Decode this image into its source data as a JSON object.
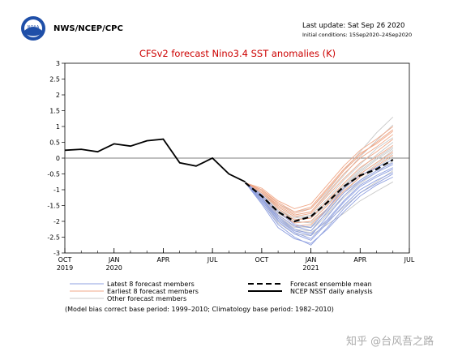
{
  "header": {
    "org": "NWS/NCEP/CPC",
    "last_update": "Last update: Sat Sep 26 2020",
    "initial_conditions": "Initial conditions: 15Sep2020–24Sep2020",
    "logo_text": "NOAA"
  },
  "watermark": "知乎 @台风吾之路",
  "footnote": "(Model bias correct base period: 1999–2010; Climatology base period: 1982–2010)",
  "colors": {
    "latest": "#8fa0e0",
    "earliest": "#f0a888",
    "other": "#c8c8c8",
    "mean": "#000000",
    "analysis": "#000000",
    "title": "#cc0000"
  },
  "legend": [
    {
      "label": "Latest 8 forecast members",
      "key": "latest"
    },
    {
      "label": "Forecast ensemble mean",
      "key": "mean"
    },
    {
      "label": "Earliest 8 forecast members",
      "key": "earliest"
    },
    {
      "label": "NCEP NSST daily analysis",
      "key": "analysis"
    },
    {
      "label": "Other forecast members",
      "key": "other"
    }
  ],
  "chart_data": {
    "type": "line",
    "title": "CFSv2 forecast Nino3.4 SST anomalies (K)",
    "x_unit": "month",
    "xlim": [
      "2019-10",
      "2021-07"
    ],
    "ylim": [
      -3,
      3
    ],
    "y_ticks": [
      -3,
      -2.5,
      -2,
      -1.5,
      -1,
      -0.5,
      0,
      0.5,
      1,
      1.5,
      2,
      2.5,
      3
    ],
    "x_ticks": [
      {
        "line1": "OCT",
        "line2": "2019",
        "x": "2019-10"
      },
      {
        "line1": "JAN",
        "line2": "2020",
        "x": "2020-01"
      },
      {
        "line1": "APR",
        "line2": "",
        "x": "2020-04"
      },
      {
        "line1": "JUL",
        "line2": "",
        "x": "2020-07"
      },
      {
        "line1": "OCT",
        "line2": "",
        "x": "2020-10"
      },
      {
        "line1": "JAN",
        "line2": "2021",
        "x": "2021-01"
      },
      {
        "line1": "APR",
        "line2": "",
        "x": "2021-04"
      },
      {
        "line1": "JUL",
        "line2": "",
        "x": "2021-07"
      }
    ],
    "analysis": {
      "name": "NCEP NSST daily analysis",
      "points": [
        [
          "2019-10",
          0.25
        ],
        [
          "2019-11",
          0.28
        ],
        [
          "2019-12",
          0.2
        ],
        [
          "2020-01",
          0.45
        ],
        [
          "2020-02",
          0.38
        ],
        [
          "2020-03",
          0.55
        ],
        [
          "2020-04",
          0.6
        ],
        [
          "2020-05",
          -0.15
        ],
        [
          "2020-06",
          -0.25
        ],
        [
          "2020-07",
          0.0
        ],
        [
          "2020-08",
          -0.5
        ],
        [
          "2020-09",
          -0.75
        ]
      ]
    },
    "ensemble_mean": {
      "name": "Forecast ensemble mean",
      "points": [
        [
          "2020-09",
          -0.78
        ],
        [
          "2020-10",
          -1.2
        ],
        [
          "2020-11",
          -1.7
        ],
        [
          "2020-12",
          -2.0
        ],
        [
          "2021-01",
          -1.85
        ],
        [
          "2021-02",
          -1.4
        ],
        [
          "2021-03",
          -0.9
        ],
        [
          "2021-04",
          -0.55
        ],
        [
          "2021-05",
          -0.35
        ],
        [
          "2021-06",
          -0.05
        ]
      ]
    },
    "members": {
      "x": [
        "2020-09",
        "2020-10",
        "2020-11",
        "2020-12",
        "2021-01",
        "2021-02",
        "2021-03",
        "2021-04",
        "2021-05",
        "2021-06"
      ],
      "latest": [
        [
          -0.78,
          -1.3,
          -1.95,
          -2.35,
          -2.55,
          -2.0,
          -1.4,
          -0.9,
          -0.6,
          -0.35
        ],
        [
          -0.78,
          -1.25,
          -1.9,
          -2.3,
          -2.45,
          -1.85,
          -1.2,
          -0.75,
          -0.45,
          -0.2
        ],
        [
          -0.78,
          -1.4,
          -2.1,
          -2.5,
          -2.75,
          -2.2,
          -1.6,
          -1.1,
          -0.8,
          -0.5
        ],
        [
          -0.78,
          -1.2,
          -1.8,
          -2.15,
          -2.3,
          -1.7,
          -1.1,
          -0.7,
          -0.4,
          -0.15
        ],
        [
          -0.78,
          -1.35,
          -2.0,
          -2.4,
          -2.6,
          -2.05,
          -1.5,
          -1.0,
          -0.7,
          -0.45
        ],
        [
          -0.78,
          -1.15,
          -1.7,
          -2.1,
          -2.2,
          -1.6,
          -0.95,
          -0.55,
          -0.3,
          -0.05
        ],
        [
          -0.78,
          -1.3,
          -1.85,
          -2.25,
          -2.4,
          -1.95,
          -1.35,
          -0.85,
          -0.55,
          -0.3
        ],
        [
          -0.78,
          -1.45,
          -2.2,
          -2.55,
          -2.7,
          -2.25,
          -1.7,
          -1.2,
          -0.85,
          -0.6
        ]
      ],
      "earliest": [
        [
          -0.78,
          -1.0,
          -1.45,
          -1.75,
          -1.6,
          -1.0,
          -0.4,
          0.1,
          0.5,
          0.9
        ],
        [
          -0.78,
          -1.05,
          -1.5,
          -1.8,
          -1.7,
          -1.1,
          -0.5,
          0.0,
          0.35,
          0.75
        ],
        [
          -0.78,
          -0.95,
          -1.35,
          -1.6,
          -1.45,
          -0.85,
          -0.25,
          0.25,
          0.6,
          1.0
        ],
        [
          -0.78,
          -1.1,
          -1.6,
          -1.95,
          -1.9,
          -1.35,
          -0.8,
          -0.3,
          0.05,
          0.4
        ],
        [
          -0.78,
          -1.0,
          -1.4,
          -1.7,
          -1.55,
          -0.95,
          -0.35,
          0.15,
          0.45,
          0.85
        ],
        [
          -0.78,
          -1.15,
          -1.7,
          -2.05,
          -2.0,
          -1.5,
          -0.95,
          -0.5,
          -0.15,
          0.2
        ],
        [
          -0.78,
          -1.05,
          -1.55,
          -1.85,
          -1.75,
          -1.2,
          -0.65,
          -0.15,
          0.2,
          0.6
        ],
        [
          -0.78,
          -1.2,
          -1.8,
          -2.15,
          -2.1,
          -1.6,
          -1.05,
          -0.6,
          -0.25,
          0.1
        ]
      ],
      "other": [
        [
          -0.78,
          -1.1,
          -1.6,
          -1.9,
          -1.8,
          -1.3,
          -0.7,
          -0.2,
          0.3,
          0.65
        ],
        [
          -0.78,
          -1.2,
          -1.75,
          -2.05,
          -2.0,
          -1.5,
          -0.9,
          -0.4,
          0.0,
          0.35
        ],
        [
          -0.78,
          -1.25,
          -1.85,
          -2.2,
          -2.15,
          -1.65,
          -1.1,
          -0.6,
          -0.2,
          0.15
        ],
        [
          -0.78,
          -1.15,
          -1.65,
          -1.95,
          -1.85,
          -1.4,
          -0.85,
          -0.35,
          0.1,
          0.5
        ],
        [
          -0.78,
          -1.3,
          -1.9,
          -2.25,
          -2.3,
          -1.8,
          -1.25,
          -0.8,
          -0.45,
          -0.1
        ],
        [
          -0.78,
          -1.35,
          -1.95,
          -2.3,
          -2.35,
          -2.0,
          -1.55,
          -1.1,
          -0.75,
          -0.4
        ],
        [
          -0.78,
          -1.05,
          -1.5,
          -1.8,
          -1.7,
          -1.15,
          -0.55,
          0.05,
          0.55,
          1.05
        ],
        [
          -0.78,
          -1.0,
          -1.45,
          -1.7,
          -1.6,
          -1.05,
          -0.4,
          0.2,
          0.8,
          1.3
        ],
        [
          -0.78,
          -1.4,
          -2.05,
          -2.4,
          -2.45,
          -2.1,
          -1.75,
          -1.35,
          -1.05,
          -0.75
        ],
        [
          -0.78,
          -1.2,
          -1.7,
          -2.0,
          -2.05,
          -1.6,
          -1.0,
          -0.5,
          -0.15,
          0.25
        ],
        [
          -0.78,
          -1.1,
          -1.55,
          -1.85,
          -1.9,
          -1.45,
          -0.9,
          -0.45,
          -0.05,
          0.3
        ],
        [
          -0.78,
          -1.25,
          -1.8,
          -2.15,
          -2.2,
          -1.75,
          -1.2,
          -0.7,
          -0.3,
          0.05
        ]
      ]
    }
  }
}
